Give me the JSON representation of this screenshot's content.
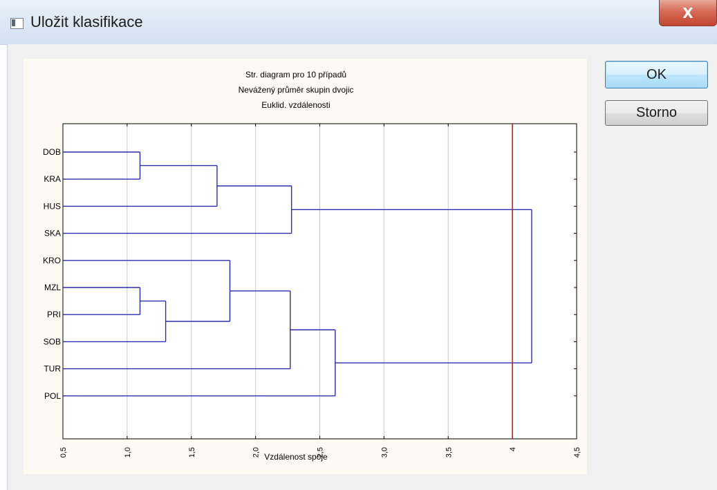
{
  "window": {
    "title": "Uložit klasifikace",
    "close_label": "X"
  },
  "buttons": {
    "ok_label": "OK",
    "cancel_label": "Storno"
  },
  "chart_data": {
    "type": "dendrogram",
    "title": "Str. diagram pro 10 případů",
    "subtitle_1": "Nevážený průměr skupin dvojic",
    "subtitle_2": "Euklid. vzdálenosti",
    "xlabel": "Vzdálenost spoje",
    "xlim": [
      0.5,
      4.5
    ],
    "x_ticks": [
      0.5,
      1.0,
      1.5,
      2.0,
      2.5,
      3.0,
      3.5,
      4.0,
      4.5
    ],
    "x_tick_labels": [
      "0,5",
      "1,0",
      "1,5",
      "2,0",
      "2,5",
      "3,0",
      "3,5",
      "4",
      "4,5"
    ],
    "grid": true,
    "leaves": [
      "DOB",
      "KRA",
      "HUS",
      "SKA",
      "KRO",
      "MZL",
      "PRI",
      "SOB",
      "TUR",
      "POL"
    ],
    "merges": [
      {
        "left": "DOB",
        "right": "KRA",
        "height": 1.1
      },
      {
        "left": "MZL",
        "right": "PRI",
        "height": 1.1
      },
      {
        "left": "MZL+PRI",
        "right": "SOB",
        "height": 1.3
      },
      {
        "left": "DOB+KRA",
        "right": "HUS",
        "height": 1.7
      },
      {
        "left": "KRO",
        "right": "MZL+PRI+SOB",
        "height": 1.8
      },
      {
        "left": "DOB+KRA+HUS",
        "right": "SKA",
        "height": 2.28
      },
      {
        "left": "KRO+MZL+PRI+SOB",
        "right": "TUR",
        "height": 2.27
      },
      {
        "left": "KRO+MZL+PRI+SOB+TUR",
        "right": "POL",
        "height": 2.62
      },
      {
        "left": "DOB+KRA+HUS+SKA",
        "right": "KRO+MZL+PRI+SOB+TUR+POL",
        "height": 4.15
      }
    ],
    "cut_line": 4.0,
    "colors": {
      "branches": "#2b2bb0",
      "cut_line": "#cc1111",
      "grid": "#c8c8c8",
      "axis": "#000000"
    }
  }
}
